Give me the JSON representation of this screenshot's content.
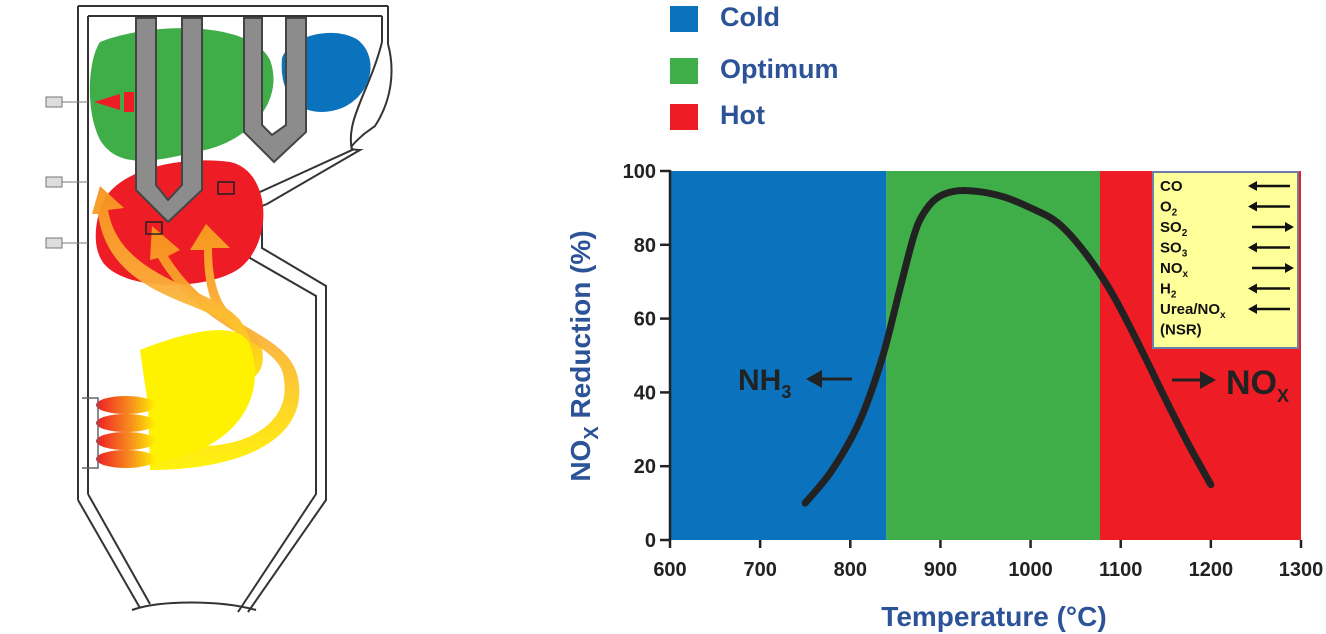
{
  "legend": [
    {
      "label": "Cold",
      "color": "#0b72bd"
    },
    {
      "label": "Optimum",
      "color": "#3fae49"
    },
    {
      "label": "Hot",
      "color": "#ee1c25"
    }
  ],
  "effects_box": {
    "items": [
      {
        "label": "CO",
        "sub": "",
        "suffix": "",
        "arrow": "left"
      },
      {
        "label": "O",
        "sub": "2",
        "suffix": "",
        "arrow": "left"
      },
      {
        "label": "SO",
        "sub": "2",
        "suffix": "",
        "arrow": "right"
      },
      {
        "label": "SO",
        "sub": "3",
        "suffix": "",
        "arrow": "left"
      },
      {
        "label": "NO",
        "sub": "x",
        "suffix": "",
        "arrow": "right"
      },
      {
        "label": "H",
        "sub": "2",
        "suffix": "",
        "arrow": "left"
      },
      {
        "label": "Urea/NO",
        "sub": "x",
        "suffix": "",
        "arrow": "left"
      },
      {
        "label": "(NSR)",
        "sub": "",
        "suffix": "",
        "arrow": "none"
      }
    ]
  },
  "annotations": {
    "nh3": {
      "base": "NH",
      "sub": "3"
    },
    "nox": {
      "base": "NO",
      "sub": "X"
    }
  },
  "chart_data": {
    "type": "line",
    "xlabel": "Temperature (°C)",
    "ylabel_base": "NO",
    "ylabel_sub": "X",
    "ylabel_rest": " Reduction  (%)",
    "xlim": [
      600,
      1300
    ],
    "ylim": [
      0,
      100
    ],
    "xticks": [
      600,
      700,
      800,
      900,
      1000,
      1100,
      1200,
      1300
    ],
    "yticks": [
      0,
      20,
      40,
      60,
      80,
      100
    ],
    "bands": [
      {
        "label": "Cold",
        "from": 600,
        "to": 840,
        "color": "#0b72bd"
      },
      {
        "label": "Optimum",
        "from": 840,
        "to": 1077,
        "color": "#3fae49"
      },
      {
        "label": "Hot",
        "from": 1077,
        "to": 1300,
        "color": "#ee1c25"
      }
    ],
    "series": [
      {
        "x": [
          750,
          780,
          810,
          835,
          855,
          870,
          880,
          895,
          915,
          940,
          970,
          1000,
          1030,
          1060,
          1090,
          1120,
          1150,
          1175,
          1200
        ],
        "values": [
          10,
          19,
          32,
          49,
          68,
          82,
          88,
          92.5,
          94.5,
          94.5,
          93,
          90,
          86,
          78,
          67,
          53,
          38,
          26,
          15
        ]
      }
    ]
  }
}
